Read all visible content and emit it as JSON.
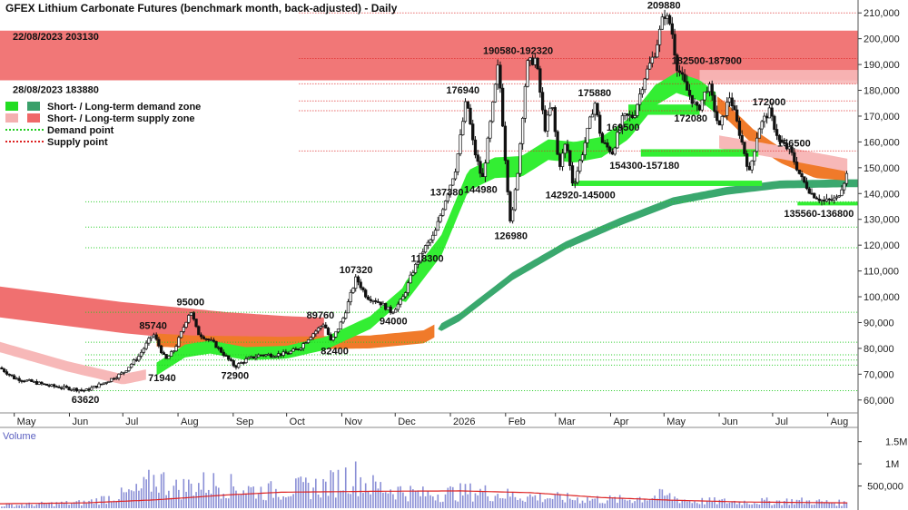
{
  "chart_data": [
    {
      "type": "candlestick",
      "title": "GFEX Lithium Carbonate Futures (benchmark month, back-adjusted) - Daily",
      "ylim": [
        55000,
        215000
      ],
      "y_ticks": [
        {
          "value": 60000,
          "label": "60,000"
        },
        {
          "value": 70000,
          "label": "70,000"
        },
        {
          "value": 80000,
          "label": "80,000"
        },
        {
          "value": 90000,
          "label": "90,000"
        },
        {
          "value": 100000,
          "label": "100,000"
        },
        {
          "value": 110000,
          "label": "110,000"
        },
        {
          "value": 120000,
          "label": "120,000"
        },
        {
          "value": 130000,
          "label": "130,000"
        },
        {
          "value": 140000,
          "label": "140,000"
        },
        {
          "value": 150000,
          "label": "150,000"
        },
        {
          "value": 160000,
          "label": "160,000"
        },
        {
          "value": 170000,
          "label": "170,000"
        },
        {
          "value": 180000,
          "label": "180,000"
        },
        {
          "value": 190000,
          "label": "190,000"
        },
        {
          "value": 200000,
          "label": "200,000"
        },
        {
          "value": 210000,
          "label": "210,000"
        }
      ],
      "x_ticks": [
        "May",
        "Jun",
        "Jul",
        "Aug",
        "Sep",
        "Oct",
        "Nov",
        "Dec",
        "2026",
        "Feb",
        "Mar",
        "Apr",
        "May",
        "Jun",
        "Jul",
        "Aug"
      ],
      "x_tick_days": [
        0,
        31,
        61,
        92,
        123,
        153,
        184,
        214,
        245,
        276,
        304,
        335,
        365,
        396,
        426,
        457
      ],
      "x_range_days": [
        -8,
        474
      ],
      "grid": false,
      "price_path": [
        [
          -8,
          72500
        ],
        [
          0,
          68500
        ],
        [
          10,
          67000
        ],
        [
          20,
          65500
        ],
        [
          31,
          64500
        ],
        [
          40,
          63620
        ],
        [
          50,
          66500
        ],
        [
          61,
          70500
        ],
        [
          70,
          77000
        ],
        [
          78,
          85740
        ],
        [
          85,
          75500
        ],
        [
          90,
          79500
        ],
        [
          95,
          88000
        ],
        [
          99,
          95000
        ],
        [
          103,
          86000
        ],
        [
          112,
          82000
        ],
        [
          118,
          77500
        ],
        [
          124,
          72900
        ],
        [
          130,
          75500
        ],
        [
          138,
          77500
        ],
        [
          145,
          77500
        ],
        [
          153,
          78000
        ],
        [
          160,
          80000
        ],
        [
          166,
          84500
        ],
        [
          174,
          89760
        ],
        [
          178,
          82400
        ],
        [
          185,
          92000
        ],
        [
          192,
          107320
        ],
        [
          198,
          100000
        ],
        [
          205,
          98000
        ],
        [
          212,
          94000
        ],
        [
          218,
          99000
        ],
        [
          224,
          110000
        ],
        [
          230,
          118300
        ],
        [
          236,
          124000
        ],
        [
          242,
          137380
        ],
        [
          248,
          150000
        ],
        [
          254,
          176940
        ],
        [
          258,
          158000
        ],
        [
          263,
          144980
        ],
        [
          268,
          170000
        ],
        [
          272,
          190580
        ],
        [
          276,
          152000
        ],
        [
          279,
          126980
        ],
        [
          283,
          150000
        ],
        [
          288,
          190000
        ],
        [
          293,
          192320
        ],
        [
          298,
          165000
        ],
        [
          302,
          175000
        ],
        [
          306,
          150000
        ],
        [
          310,
          160000
        ],
        [
          314,
          142920
        ],
        [
          320,
          158000
        ],
        [
          326,
          175880
        ],
        [
          330,
          160000
        ],
        [
          336,
          156000
        ],
        [
          342,
          169500
        ],
        [
          348,
          170000
        ],
        [
          354,
          185000
        ],
        [
          360,
          195000
        ],
        [
          365,
          209880
        ],
        [
          369,
          205000
        ],
        [
          372,
          190000
        ],
        [
          378,
          180000
        ],
        [
          384,
          172080
        ],
        [
          390,
          182500
        ],
        [
          396,
          165000
        ],
        [
          402,
          178000
        ],
        [
          408,
          162000
        ],
        [
          413,
          148000
        ],
        [
          418,
          165000
        ],
        [
          424,
          172000
        ],
        [
          430,
          160000
        ],
        [
          436,
          156500
        ],
        [
          442,
          146000
        ],
        [
          448,
          140000
        ],
        [
          455,
          136800
        ],
        [
          462,
          138000
        ],
        [
          468,
          148000
        ]
      ],
      "ma_short_path": [
        [
          -8,
          82000
        ],
        [
          20,
          75000
        ],
        [
          40,
          69500
        ],
        [
          61,
          67000
        ],
        [
          80,
          72000
        ],
        [
          96,
          79000
        ],
        [
          110,
          80500
        ],
        [
          130,
          78000
        ],
        [
          153,
          78500
        ],
        [
          175,
          82000
        ],
        [
          200,
          90000
        ],
        [
          220,
          102000
        ],
        [
          240,
          120000
        ],
        [
          255,
          145000
        ],
        [
          270,
          150000
        ],
        [
          285,
          150500
        ],
        [
          300,
          157000
        ],
        [
          315,
          156000
        ],
        [
          330,
          158000
        ],
        [
          345,
          165000
        ],
        [
          360,
          178000
        ],
        [
          372,
          183000
        ],
        [
          385,
          180000
        ],
        [
          400,
          172000
        ],
        [
          415,
          162000
        ],
        [
          430,
          155000
        ],
        [
          450,
          149000
        ],
        [
          468,
          148000
        ]
      ],
      "ma_long_path": [
        [
          -8,
          92000
        ],
        [
          20,
          88000
        ],
        [
          60,
          84000
        ],
        [
          100,
          82500
        ],
        [
          150,
          82000
        ],
        [
          200,
          82500
        ],
        [
          230,
          84500
        ],
        [
          250,
          92000
        ],
        [
          280,
          108000
        ],
        [
          310,
          120000
        ],
        [
          340,
          129000
        ],
        [
          370,
          137000
        ],
        [
          400,
          141000
        ],
        [
          430,
          143500
        ],
        [
          468,
          144000
        ]
      ],
      "annotations": [
        {
          "label": "209880",
          "day": 365,
          "value": 209880,
          "pos": "above"
        },
        {
          "label": "190580-192320",
          "day": 283,
          "value": 192320,
          "pos": "above"
        },
        {
          "label": "182500-187900",
          "day": 389,
          "value": 188500,
          "pos": "above"
        },
        {
          "label": "176940",
          "day": 252,
          "value": 176940,
          "pos": "above"
        },
        {
          "label": "175880",
          "day": 326,
          "value": 175880,
          "pos": "above"
        },
        {
          "label": "172000",
          "day": 424,
          "value": 172500,
          "pos": "above"
        },
        {
          "label": "172080",
          "day": 380,
          "value": 172080,
          "pos": "below"
        },
        {
          "label": "169500",
          "day": 342,
          "value": 168500,
          "pos": "below"
        },
        {
          "label": "156500",
          "day": 438,
          "value": 156500,
          "pos": "above"
        },
        {
          "label": "154300-157180",
          "day": 354,
          "value": 153800,
          "pos": "below"
        },
        {
          "label": "142920-145000",
          "day": 318,
          "value": 142400,
          "pos": "below"
        },
        {
          "label": "144980",
          "day": 262,
          "value": 144500,
          "pos": "below"
        },
        {
          "label": "137380",
          "day": 243,
          "value": 137380,
          "pos": "above"
        },
        {
          "label": "135560-136800",
          "day": 452,
          "value": 135200,
          "pos": "below"
        },
        {
          "label": "126980",
          "day": 279,
          "value": 126500,
          "pos": "below"
        },
        {
          "label": "118300",
          "day": 232,
          "value": 117800,
          "pos": "below"
        },
        {
          "label": "107320",
          "day": 192,
          "value": 107320,
          "pos": "above"
        },
        {
          "label": "95000",
          "day": 99,
          "value": 95000,
          "pos": "above"
        },
        {
          "label": "94000",
          "day": 213,
          "value": 93500,
          "pos": "below"
        },
        {
          "label": "89760",
          "day": 172,
          "value": 89760,
          "pos": "above"
        },
        {
          "label": "85740",
          "day": 78,
          "value": 85740,
          "pos": "above"
        },
        {
          "label": "82400",
          "day": 180,
          "value": 81900,
          "pos": "below"
        },
        {
          "label": "72900",
          "day": 124,
          "value": 72400,
          "pos": "below"
        },
        {
          "label": "71940",
          "day": 83,
          "value": 71440,
          "pos": "below"
        },
        {
          "label": "63620",
          "day": 40,
          "value": 63120,
          "pos": "below"
        }
      ],
      "supply_band": {
        "top": 203130,
        "bottom": 183880,
        "labels": [
          {
            "text": "22/08/2023 203130",
            "value": 203130
          },
          {
            "text": "28/08/2023 183880",
            "value": 183880
          }
        ]
      },
      "supply_band_right": {
        "start_day": 385,
        "top": 187900,
        "bottom": 182500
      },
      "supply_points": [
        210000,
        192320,
        182500,
        175880,
        172080,
        156500
      ],
      "demand_points": [
        136800,
        127000,
        119000,
        94000,
        82400,
        77500,
        75500,
        73500,
        63620
      ],
      "demand_zones": [
        {
          "start_day": 345,
          "end_day": 385,
          "top": 174500,
          "bottom": 170500
        },
        {
          "start_day": 352,
          "end_day": 418,
          "top": 157180,
          "bottom": 154300
        },
        {
          "start_day": 313,
          "end_day": 420,
          "top": 145000,
          "bottom": 142920
        },
        {
          "start_day": 440,
          "end_day": 474,
          "top": 136800,
          "bottom": 135560
        }
      ],
      "legend": [
        {
          "label": "Short- / Long-term demand zone",
          "swatches": [
            "#22dd22",
            "#3aa06a"
          ]
        },
        {
          "label": "Short- / Long-term supply zone",
          "swatches": [
            "#f4b0b0",
            "#f06868"
          ]
        },
        {
          "label": "Demand point",
          "line": "#22cc22"
        },
        {
          "label": "Supply point",
          "line": "#dd2222"
        }
      ]
    },
    {
      "type": "bar",
      "title": "Volume",
      "ylim": [
        0,
        1800000
      ],
      "y_ticks": [
        {
          "value": 500000,
          "label": "500,000"
        },
        {
          "value": 1000000,
          "label": "1M"
        },
        {
          "value": 1500000,
          "label": "1.5M"
        }
      ],
      "moving_average_path": [
        [
          -8,
          100000
        ],
        [
          40,
          120000
        ],
        [
          80,
          190000
        ],
        [
          120,
          300000
        ],
        [
          150,
          360000
        ],
        [
          200,
          380000
        ],
        [
          250,
          390000
        ],
        [
          290,
          350000
        ],
        [
          330,
          240000
        ],
        [
          370,
          180000
        ],
        [
          410,
          140000
        ],
        [
          468,
          120000
        ]
      ],
      "volume_envelope": [
        [
          -8,
          100000
        ],
        [
          40,
          200000
        ],
        [
          70,
          600000
        ],
        [
          80,
          1100000
        ],
        [
          90,
          700000
        ],
        [
          110,
          900000
        ],
        [
          140,
          600000
        ],
        [
          175,
          800000
        ],
        [
          190,
          1200000
        ],
        [
          200,
          800000
        ],
        [
          230,
          500000
        ],
        [
          260,
          600000
        ],
        [
          280,
          450000
        ],
        [
          310,
          350000
        ],
        [
          340,
          300000
        ],
        [
          365,
          450000
        ],
        [
          380,
          260000
        ],
        [
          410,
          230000
        ],
        [
          440,
          260000
        ],
        [
          468,
          180000
        ]
      ]
    }
  ],
  "colors": {
    "up": "#ffffff",
    "down": "#111111",
    "supply_long": "#f07070",
    "supply_short": "#f7b8b8",
    "demand_short": "#33ee33",
    "demand_long": "#3aa86e",
    "cross": "#f07a2a",
    "volume": "#8a8fd6",
    "volume_ma": "#dd2222"
  }
}
